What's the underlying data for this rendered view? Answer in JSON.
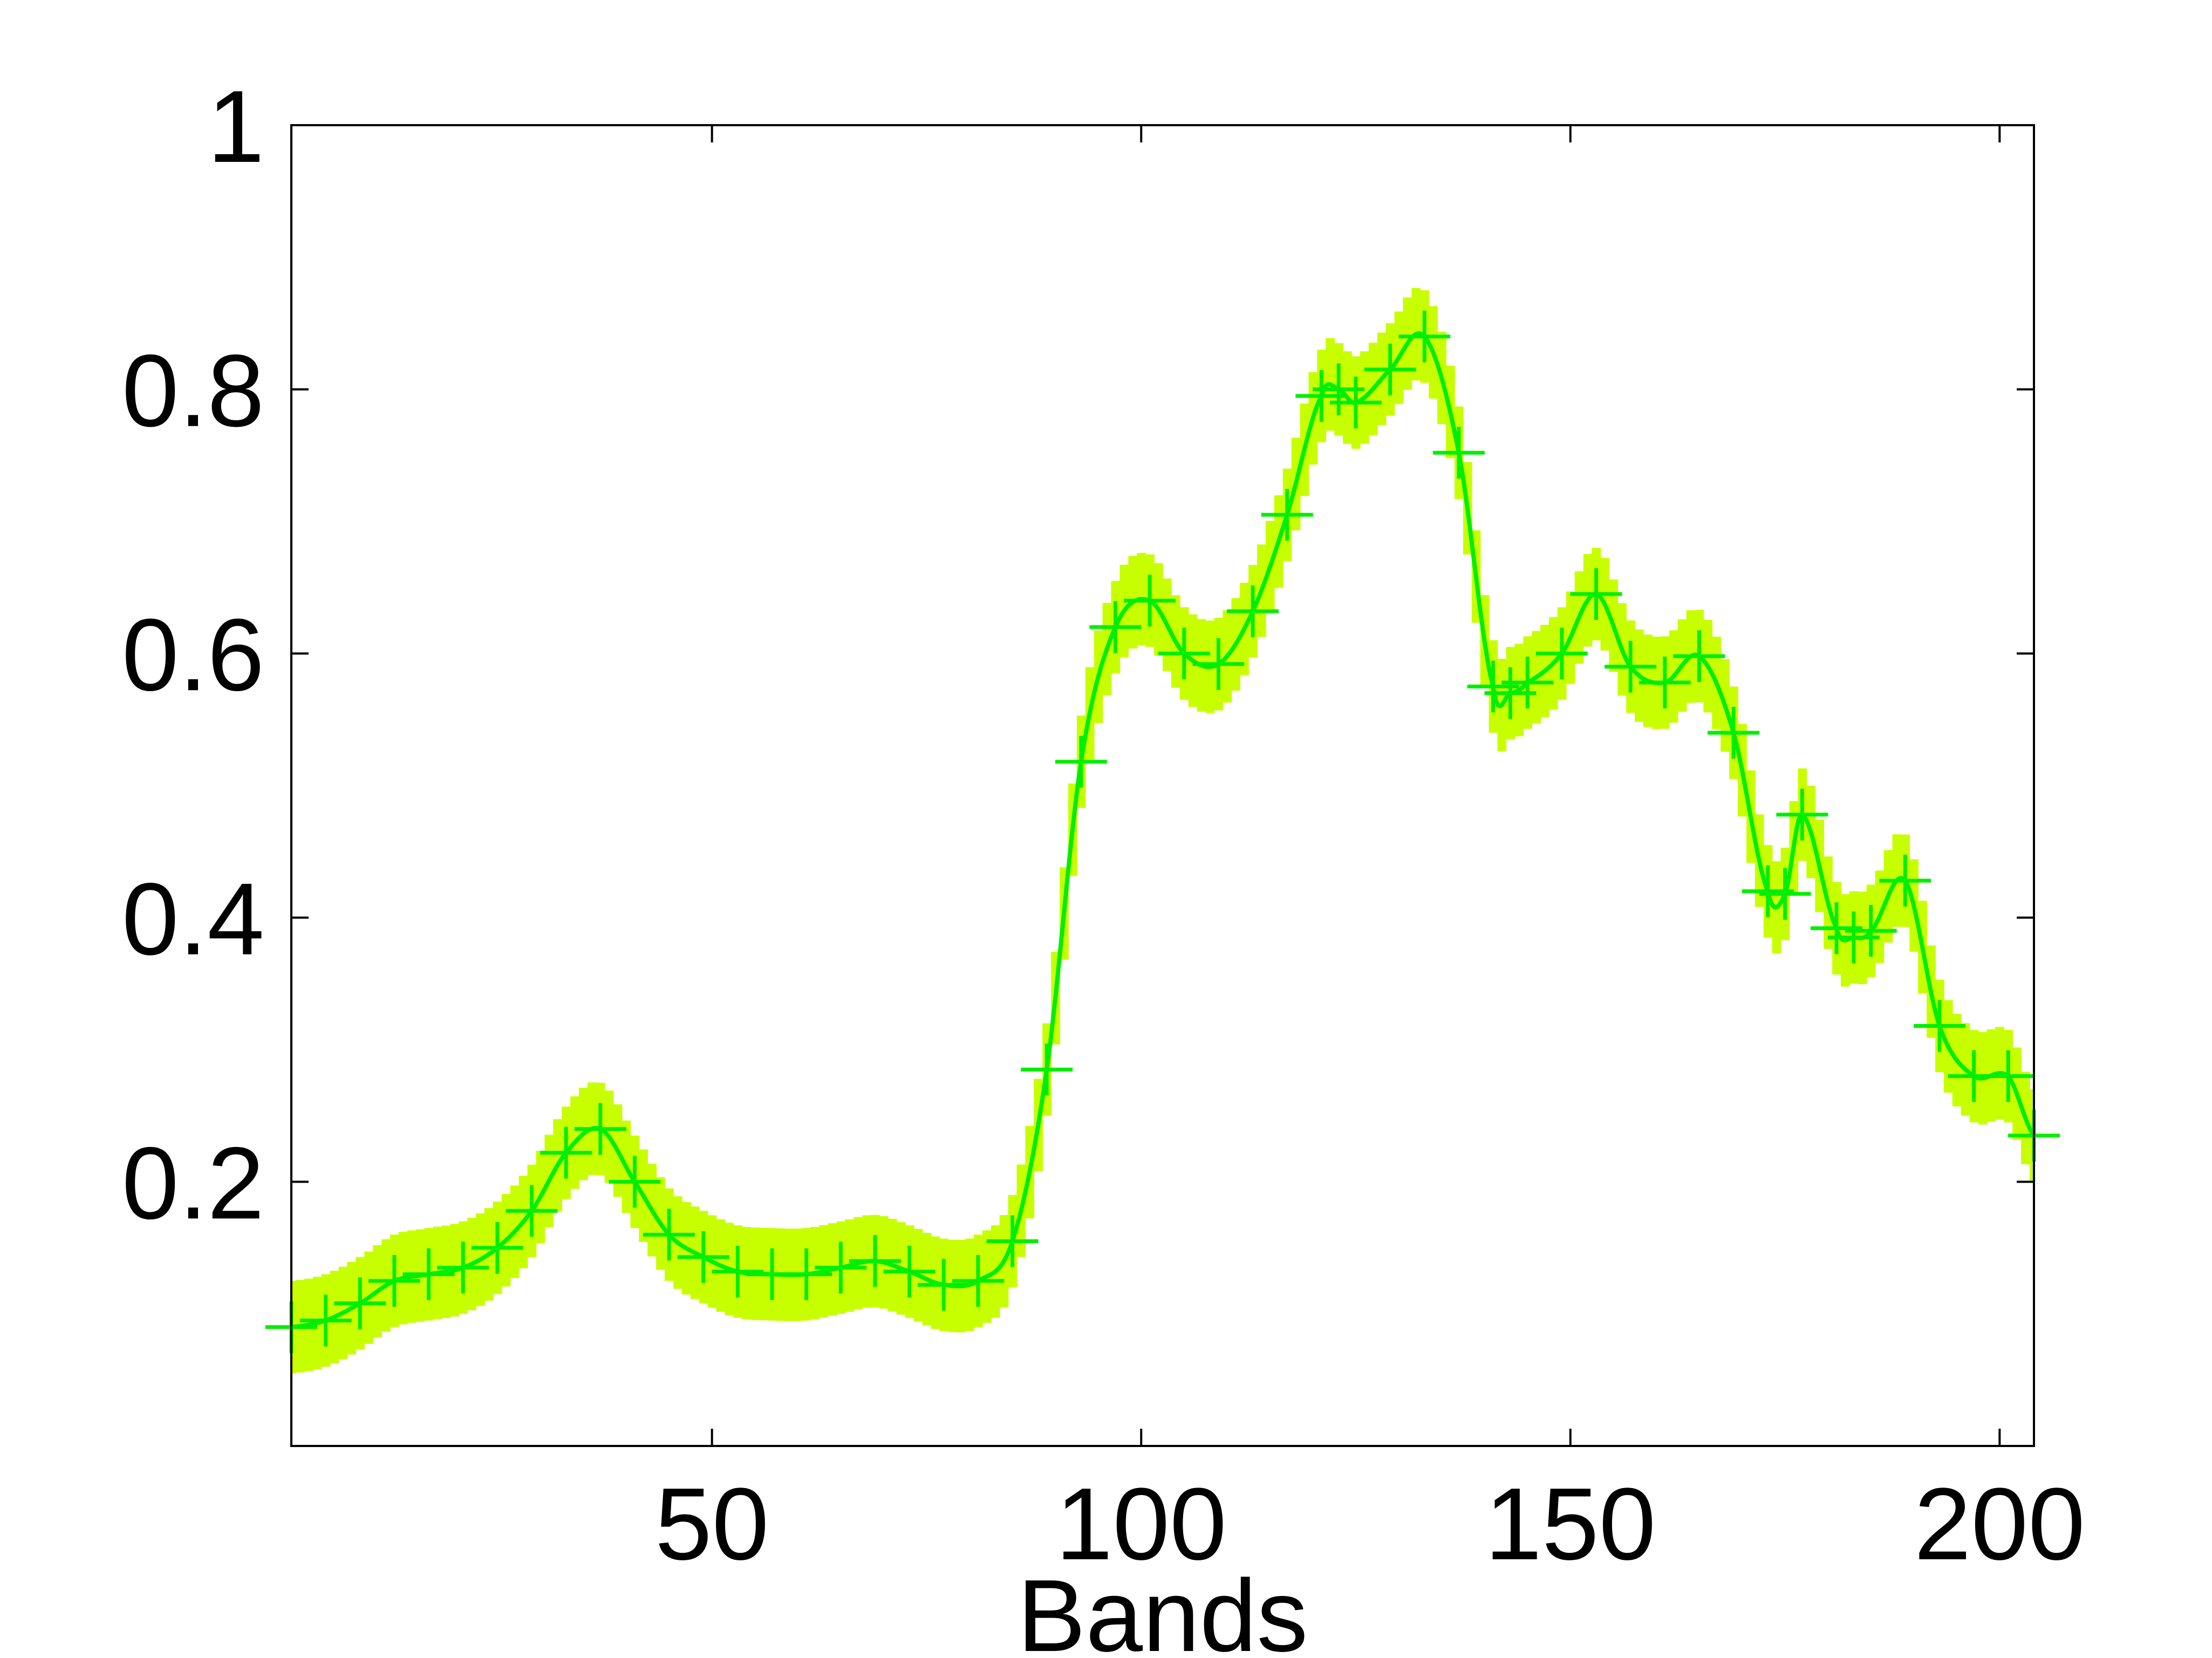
{
  "chart_data": {
    "type": "line",
    "title": "",
    "xlabel": "Bands",
    "ylabel": "",
    "xlim": [
      1,
      204
    ],
    "ylim": [
      0,
      1
    ],
    "xticks": [
      50,
      100,
      150,
      200
    ],
    "yticks": [
      0.2,
      0.4,
      0.6,
      0.8,
      1
    ],
    "ytick_labels": [
      "0.2",
      "0.4",
      "0.6",
      "0.8",
      "1"
    ],
    "grid": false,
    "legend": "none",
    "colors": {
      "line": "#00ee00",
      "band": "#c8ff00",
      "band_edge": "#aaee00",
      "axis": "#000000"
    },
    "series": [
      {
        "marker": "plus",
        "band_halfwidth": 0.035,
        "x": [
          1,
          5,
          9,
          13,
          17,
          21,
          25,
          29,
          33,
          37,
          41,
          45,
          49,
          53,
          57,
          61,
          65,
          69,
          73,
          77,
          81,
          85,
          89,
          93,
          97,
          101,
          105,
          109,
          113,
          117,
          121,
          123,
          125,
          129,
          133,
          137,
          141,
          143,
          145,
          149,
          153,
          157,
          161,
          165,
          169,
          173,
          175,
          177,
          181,
          183,
          185,
          189,
          193,
          197,
          201,
          204
        ],
        "y": [
          0.09,
          0.095,
          0.108,
          0.125,
          0.13,
          0.135,
          0.15,
          0.178,
          0.222,
          0.24,
          0.2,
          0.16,
          0.143,
          0.132,
          0.13,
          0.13,
          0.135,
          0.14,
          0.132,
          0.122,
          0.125,
          0.155,
          0.285,
          0.518,
          0.62,
          0.64,
          0.6,
          0.592,
          0.632,
          0.705,
          0.795,
          0.8,
          0.79,
          0.815,
          0.84,
          0.752,
          0.575,
          0.57,
          0.578,
          0.6,
          0.645,
          0.59,
          0.578,
          0.598,
          0.54,
          0.42,
          0.418,
          0.478,
          0.392,
          0.385,
          0.39,
          0.428,
          0.318,
          0.28,
          0.28,
          0.235
        ]
      }
    ]
  }
}
